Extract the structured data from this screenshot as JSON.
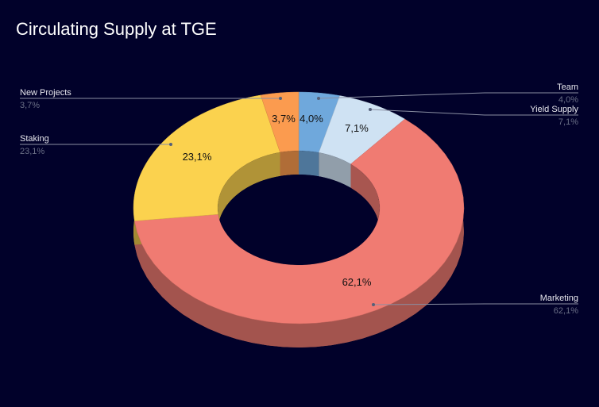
{
  "chart_data": {
    "type": "pie",
    "variant": "3d-donut",
    "title": "Circulating Supply at TGE",
    "slices": [
      {
        "label": "Team",
        "value": 4.0,
        "value_label": "4,0%",
        "color": "#6fa8dc"
      },
      {
        "label": "Yield Supply",
        "value": 7.1,
        "value_label": "7,1%",
        "color": "#cfe2f3"
      },
      {
        "label": "Marketing",
        "value": 62.1,
        "value_label": "62,1%",
        "color": "#f07b72"
      },
      {
        "label": "Staking",
        "value": 23.1,
        "value_label": "23,1%",
        "color": "#fbd24e"
      },
      {
        "label": "New Projects",
        "value": 3.7,
        "value_label": "3,7%",
        "color": "#fb9b4f"
      }
    ],
    "legend": "callouts"
  }
}
